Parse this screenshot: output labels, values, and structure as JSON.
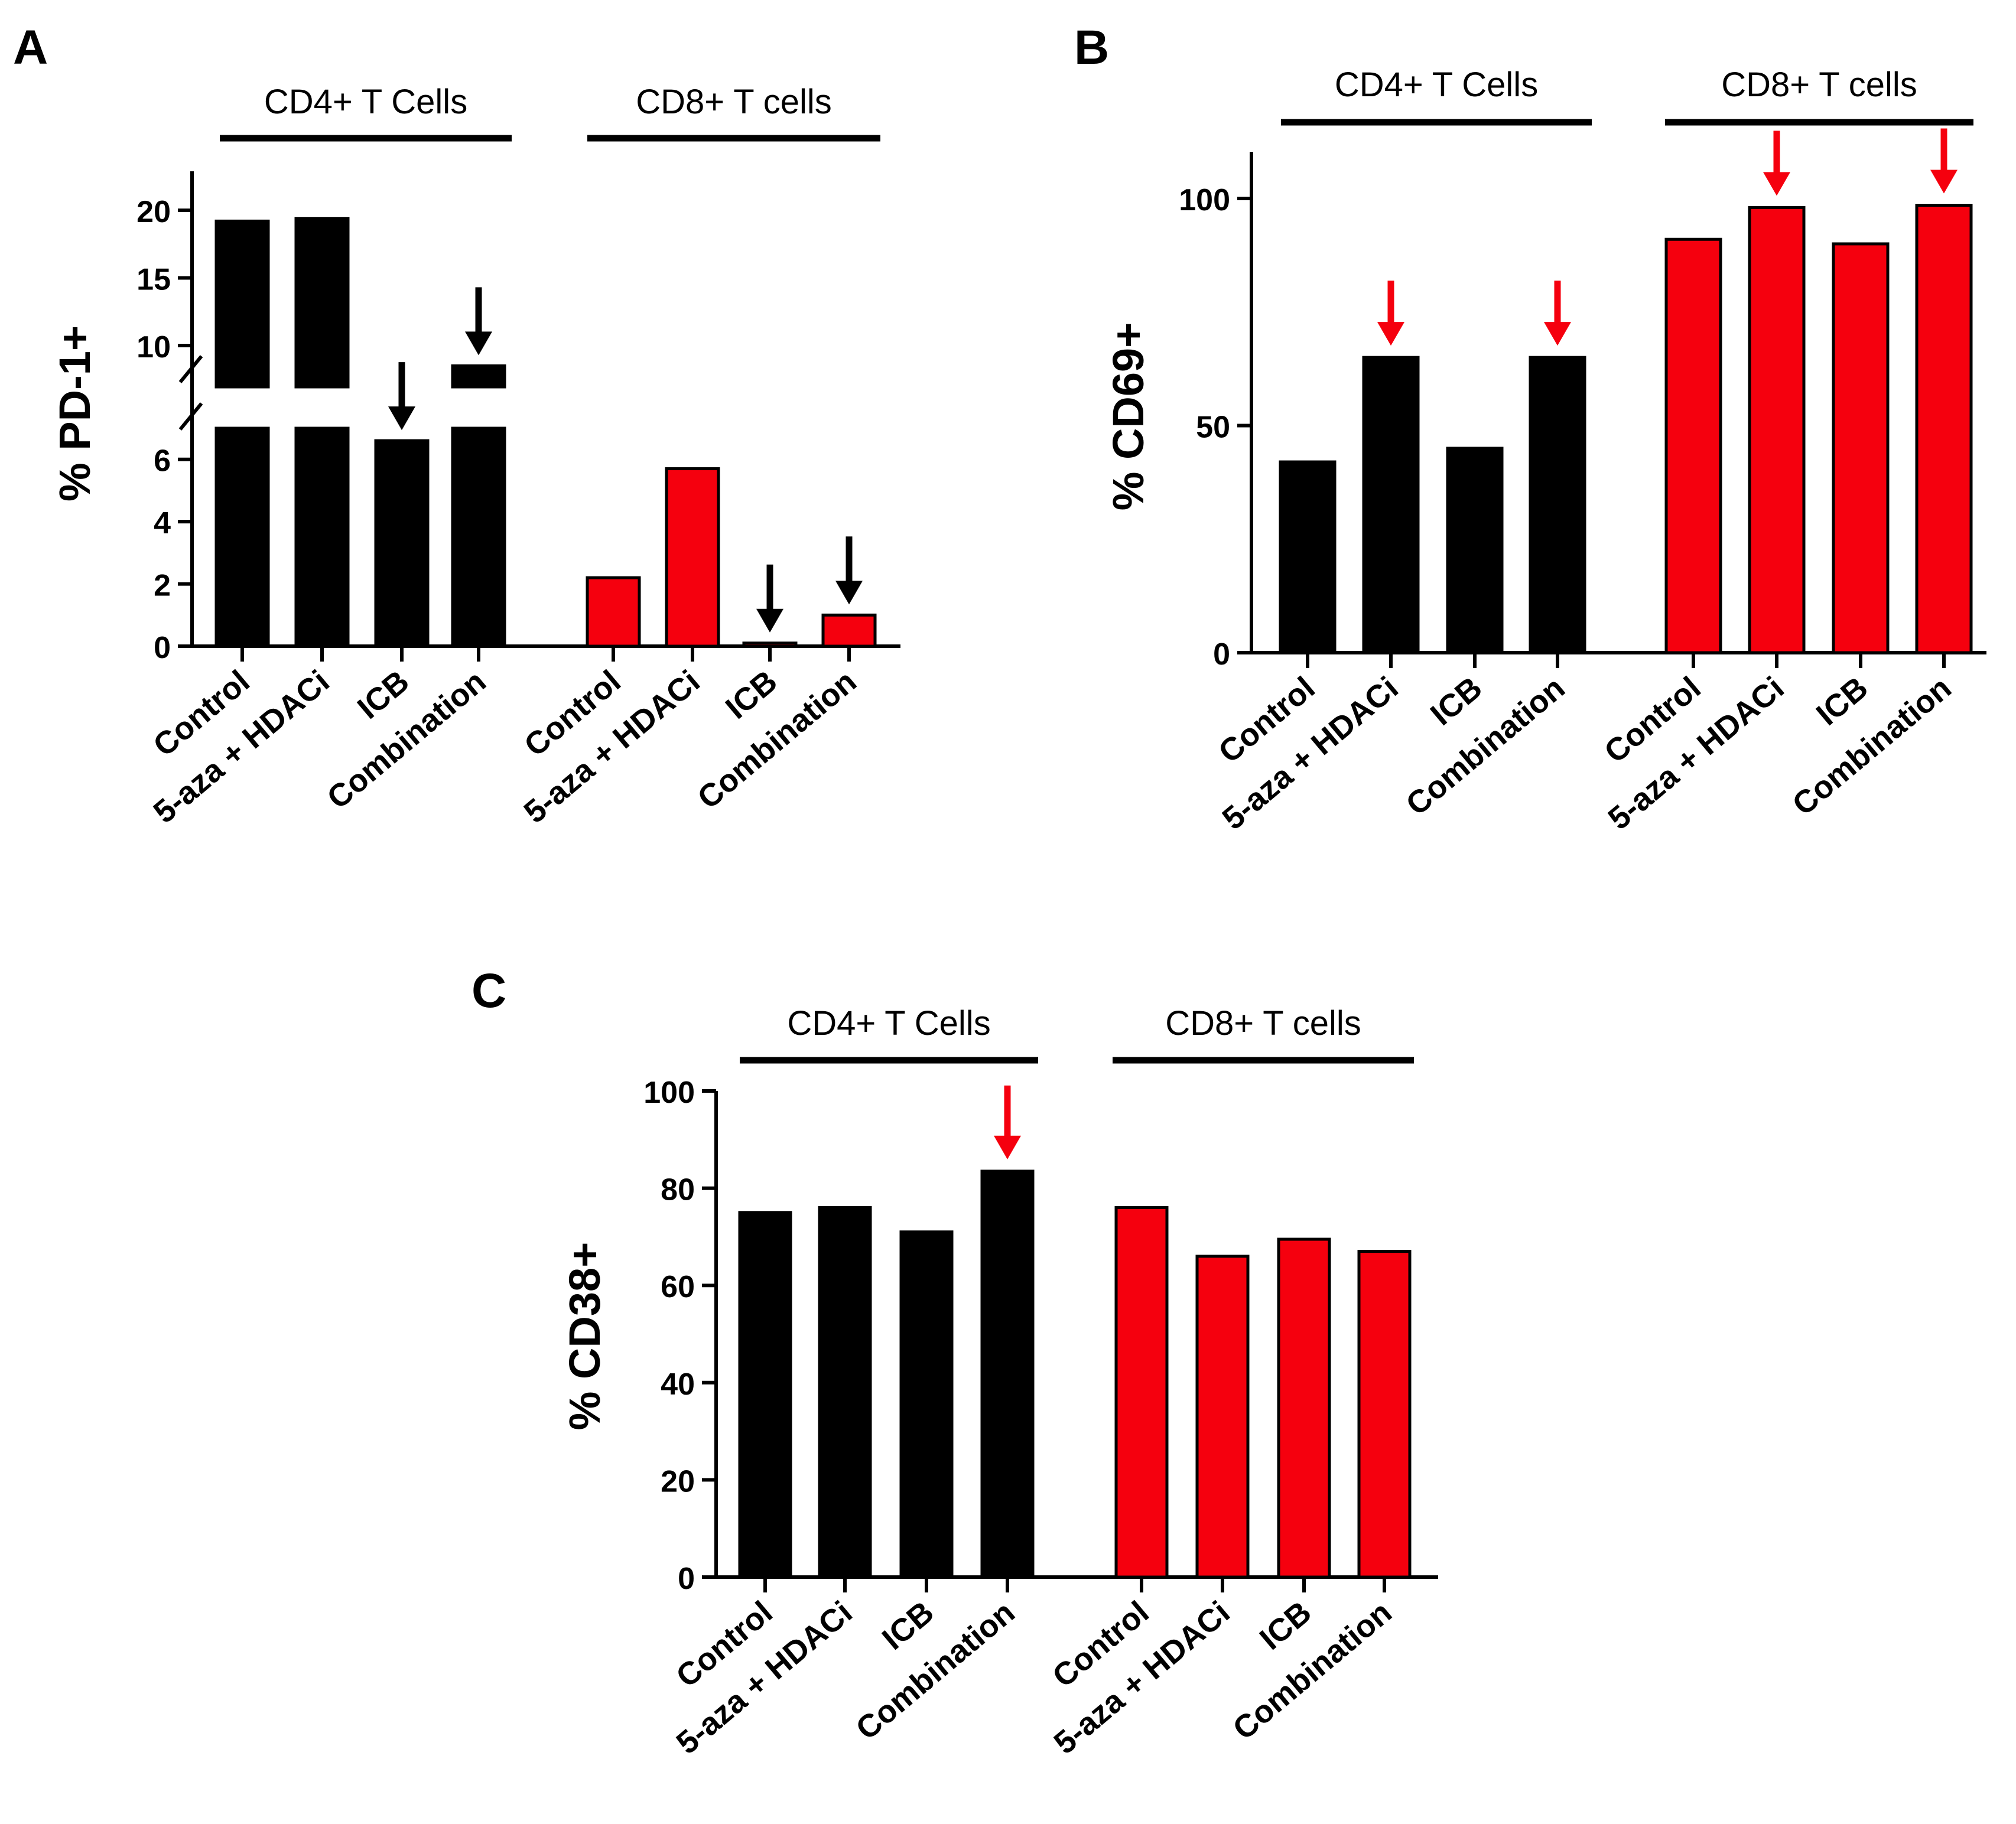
{
  "colors": {
    "cd4": "#000000",
    "cd8": "#f5000e",
    "axis": "#000000",
    "arrow_black": "#000000",
    "arrow_red": "#f5000e"
  },
  "chart_data": [
    {
      "panel": "A",
      "type": "bar",
      "ylabel": "% PD-1+",
      "group_labels": [
        "CD4+ T Cells",
        "CD8+ T cells"
      ],
      "categories": [
        "Control",
        "5-aza + HDACi",
        "ICB",
        "Combination"
      ],
      "series": [
        {
          "name": "CD4+ T Cells",
          "values": [
            19.2,
            19.4,
            6.6,
            8.5
          ]
        },
        {
          "name": "CD8+ T cells",
          "values": [
            2.2,
            5.7,
            0.1,
            1.0
          ]
        }
      ],
      "y_axis_broken": true,
      "ylim_lower": [
        0,
        7
      ],
      "ylim_upper": [
        7,
        23
      ],
      "yticks_lower": [
        "0",
        "2",
        "4",
        "6"
      ],
      "yticks_upper": [
        "10",
        "15",
        "20"
      ],
      "arrows": [
        {
          "group": 0,
          "category": 2,
          "color": "black"
        },
        {
          "group": 0,
          "category": 3,
          "color": "black"
        },
        {
          "group": 1,
          "category": 2,
          "color": "black"
        },
        {
          "group": 1,
          "category": 3,
          "color": "black"
        }
      ]
    },
    {
      "panel": "B",
      "type": "bar",
      "ylabel": "% CD69+",
      "group_labels": [
        "CD4+ T Cells",
        "CD8+ T cells"
      ],
      "categories": [
        "Control",
        "5-aza + HDACi",
        "ICB",
        "Combination"
      ],
      "series": [
        {
          "name": "CD4+ T Cells",
          "values": [
            42,
            65,
            45,
            65
          ]
        },
        {
          "name": "CD8+ T cells",
          "values": [
            91,
            98,
            90,
            98.5
          ]
        }
      ],
      "ylim": [
        0,
        110
      ],
      "yticks": [
        "0",
        "50",
        "100"
      ],
      "arrows": [
        {
          "group": 0,
          "category": 1,
          "color": "red"
        },
        {
          "group": 0,
          "category": 3,
          "color": "red"
        },
        {
          "group": 1,
          "category": 1,
          "color": "red"
        },
        {
          "group": 1,
          "category": 3,
          "color": "red"
        }
      ]
    },
    {
      "panel": "C",
      "type": "bar",
      "ylabel": "% CD38+",
      "group_labels": [
        "CD4+ T Cells",
        "CD8+ T cells"
      ],
      "categories": [
        "Control",
        "5-aza + HDACi",
        "ICB",
        "Combination"
      ],
      "series": [
        {
          "name": "CD4+ T Cells",
          "values": [
            75,
            76,
            71,
            83.5
          ]
        },
        {
          "name": "CD8+ T cells",
          "values": [
            76,
            66,
            69.5,
            67
          ]
        }
      ],
      "ylim": [
        0,
        100
      ],
      "yticks": [
        "0",
        "20",
        "40",
        "60",
        "80",
        "100"
      ],
      "arrows": [
        {
          "group": 0,
          "category": 3,
          "color": "red"
        }
      ]
    }
  ]
}
